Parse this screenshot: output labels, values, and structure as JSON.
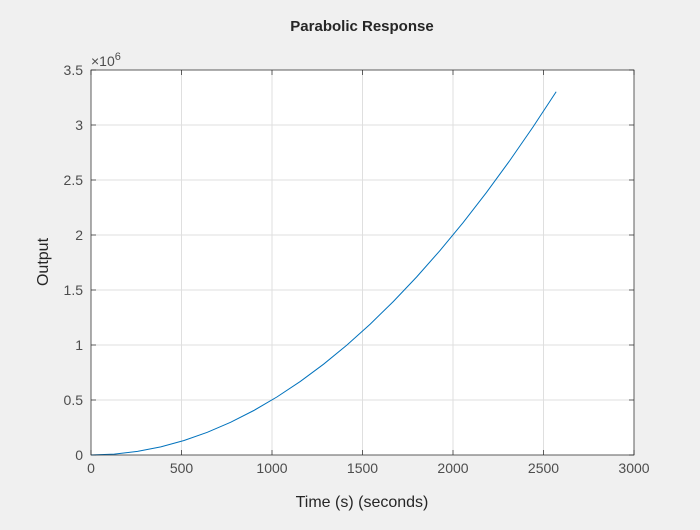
{
  "chart_data": {
    "type": "line",
    "title": "Parabolic Response",
    "xlabel": "Time (s) (seconds)",
    "ylabel": "Output",
    "xlim": [
      0,
      3000
    ],
    "ylim": [
      0,
      3500000
    ],
    "y_exponent_label": "×10",
    "y_exponent": "6",
    "xticks": [
      0,
      500,
      1000,
      1500,
      2000,
      2500,
      3000
    ],
    "xtick_labels": [
      "0",
      "500",
      "1000",
      "1500",
      "2000",
      "2500",
      "3000"
    ],
    "yticks": [
      0,
      500000,
      1000000,
      1500000,
      2000000,
      2500000,
      3000000,
      3500000
    ],
    "ytick_labels": [
      "0",
      "0.5",
      "1",
      "1.5",
      "2",
      "2.5",
      "3",
      "3.5"
    ],
    "grid": true,
    "line_color": "#0072bd",
    "series": [
      {
        "x": [
          0,
          128.5,
          257,
          385.5,
          514,
          642.5,
          771,
          899.5,
          1028,
          1156.5,
          1285,
          1413.5,
          1542,
          1670.5,
          1799,
          1927.5,
          2056,
          2184.5,
          2313,
          2441.5,
          2570
        ],
        "y": [
          0,
          8256,
          33025,
          74305,
          132098,
          206403,
          297221,
          404550,
          528392,
          668746,
          825613,
          998991,
          1188882,
          1395285,
          1618201,
          1857628,
          2113568,
          2386020,
          2674985,
          2980461,
          3302450
        ]
      }
    ]
  }
}
